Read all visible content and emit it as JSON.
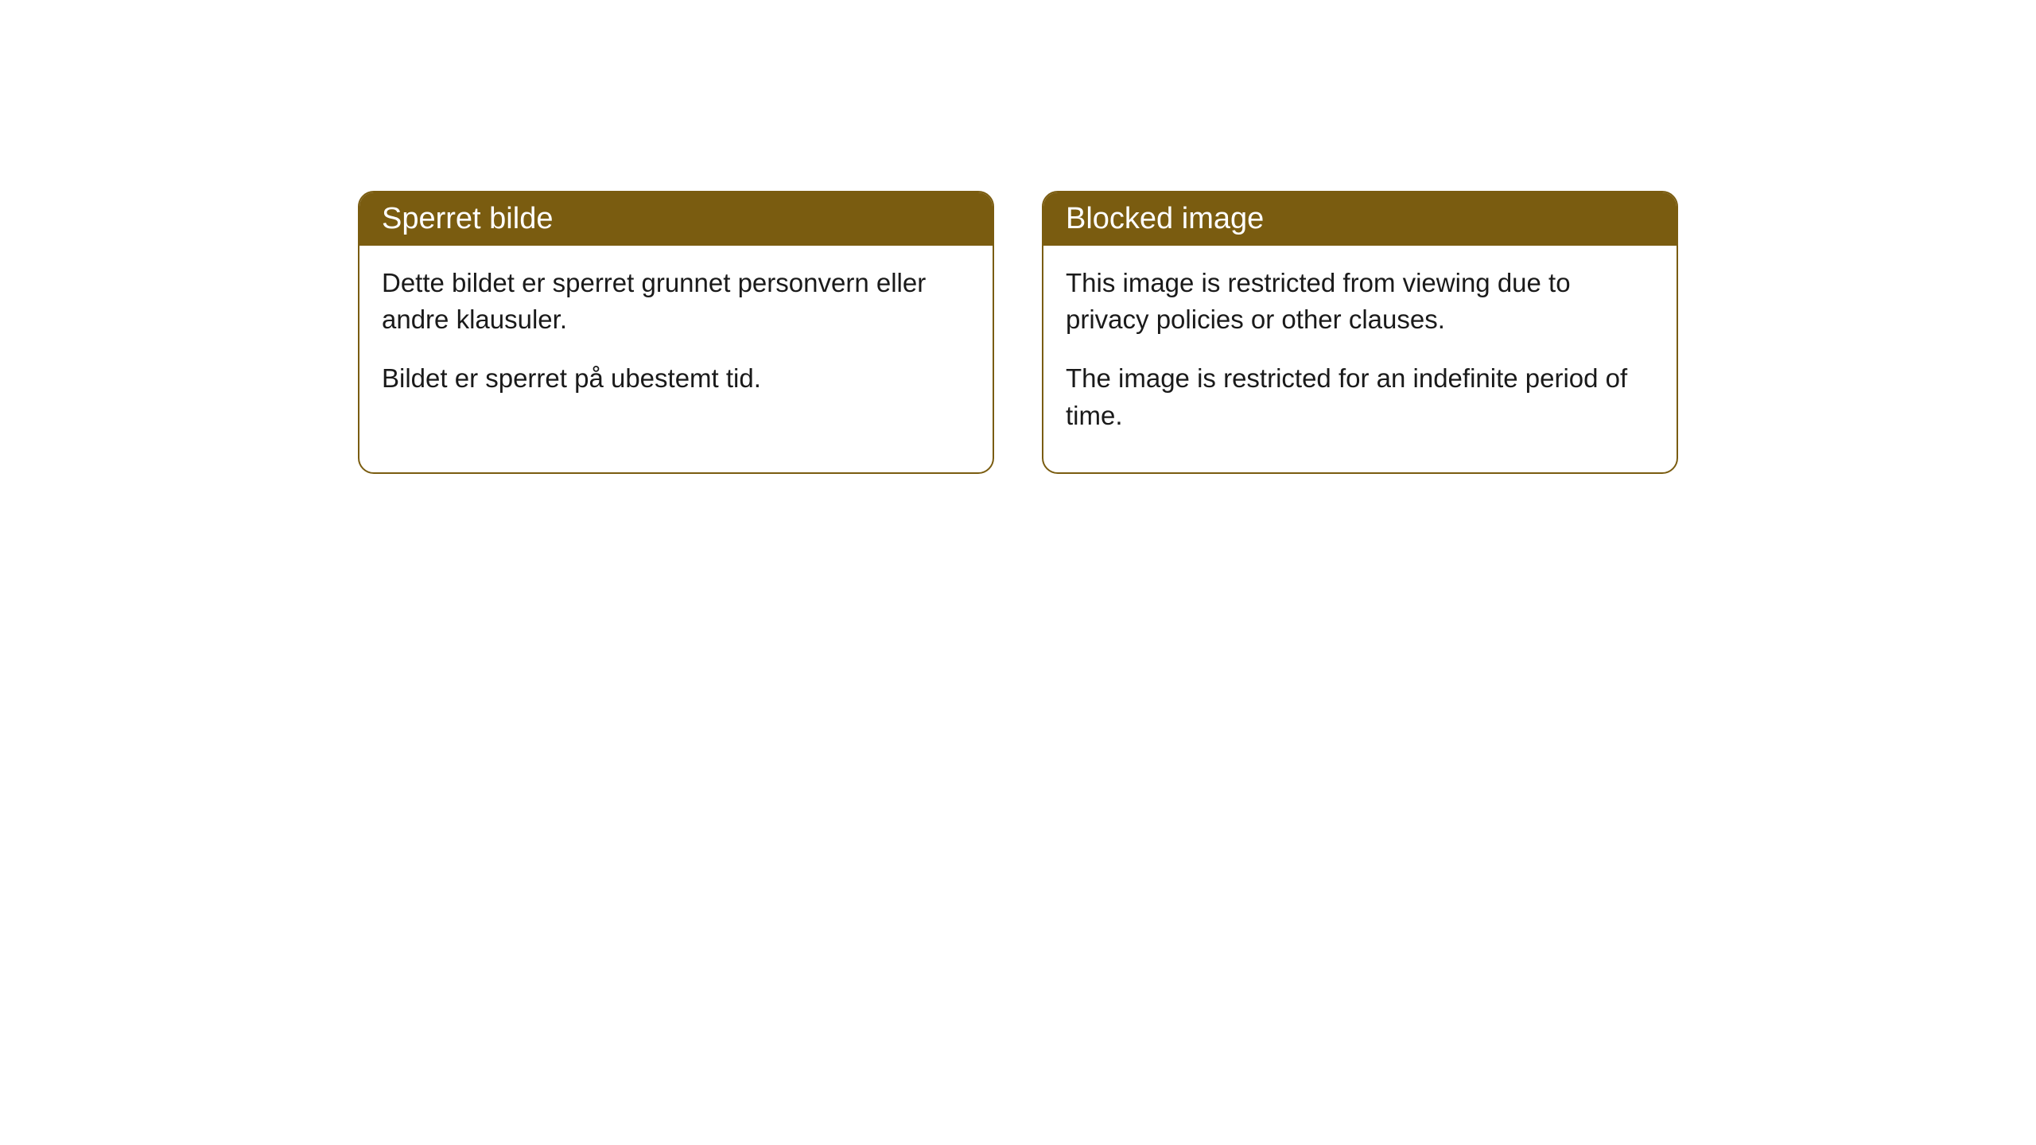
{
  "cards": [
    {
      "title": "Sperret bilde",
      "paragraph1": "Dette bildet er sperret grunnet personvern eller andre klausuler.",
      "paragraph2": "Bildet er sperret på ubestemt tid."
    },
    {
      "title": "Blocked image",
      "paragraph1": "This image is restricted from viewing due to privacy policies or other clauses.",
      "paragraph2": "The image is restricted for an indefinite period of time."
    }
  ],
  "style": {
    "header_background": "#7a5c10",
    "header_text_color": "#ffffff",
    "border_color": "#7a5c10",
    "body_background": "#ffffff",
    "body_text_color": "#1a1a1a",
    "border_radius": "20px",
    "title_fontsize": 38,
    "body_fontsize": 33
  }
}
